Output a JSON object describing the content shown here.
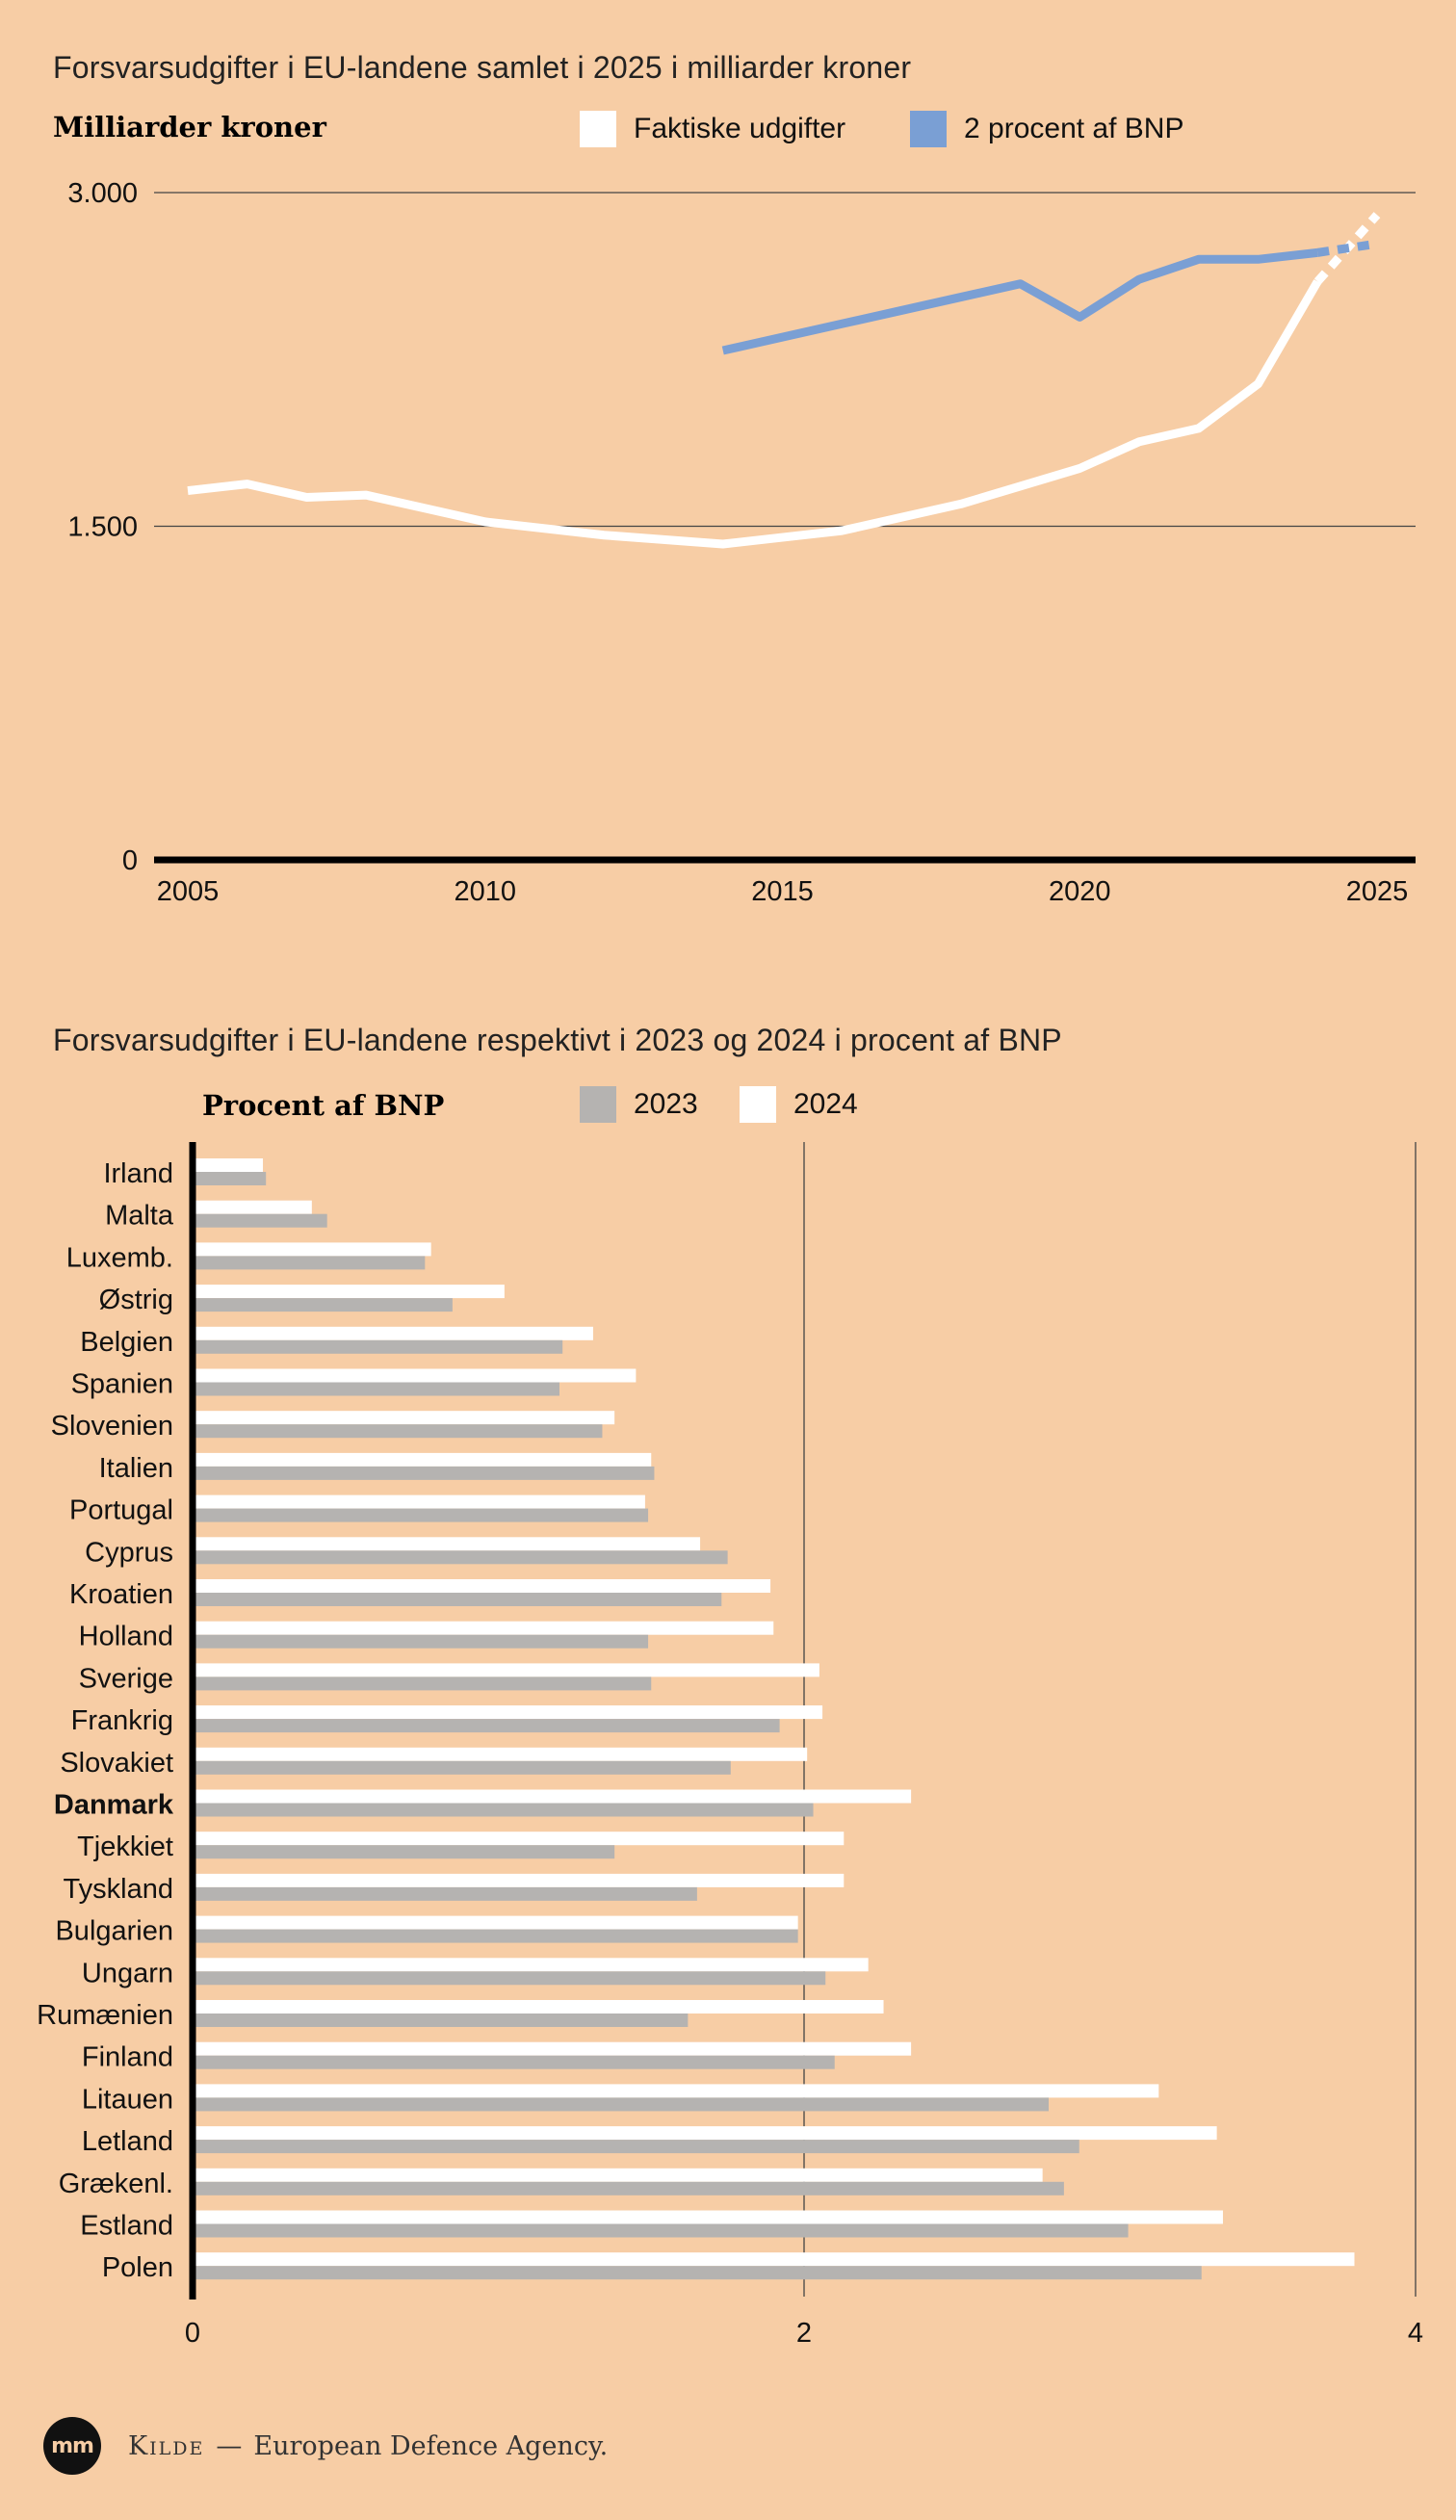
{
  "line_chart": {
    "title": "Forsvarsudgifter i EU-landene samlet i 2025 i milliarder kroner",
    "unit_label": "Milliarder kroner",
    "legend": {
      "actual": "Faktiske udgifter",
      "target": "2 procent af BNP"
    },
    "y_ticks": [
      "3.000",
      "1.500",
      "0"
    ],
    "x_ticks": [
      "2005",
      "2010",
      "2015",
      "2020",
      "2025"
    ]
  },
  "bar_chart": {
    "title": "Forsvarsudgifter i EU-landene respektivt i 2023 og 2024 i procent af BNP",
    "unit_label": "Procent af BNP",
    "legend": {
      "y2023": "2023",
      "y2024": "2024"
    },
    "x_ticks": [
      "0",
      "2",
      "4"
    ]
  },
  "source": {
    "logo": "mm",
    "label": "Kilde",
    "dash": "—",
    "text": "European Defence Agency."
  },
  "colors": {
    "background": "#f7cda5",
    "actual": "#ffffff",
    "target": "#7a9fd4",
    "bar2023": "#b5b3b1",
    "bar2024": "#ffffff",
    "axis": "#000000"
  },
  "chart_data": [
    {
      "type": "line",
      "title": "Forsvarsudgifter i EU-landene samlet i 2025 i milliarder kroner",
      "ylabel": "Milliarder kroner",
      "xlim": [
        2005,
        2025
      ],
      "ylim": [
        0,
        3000
      ],
      "grid": true,
      "legend_position": "top",
      "series": [
        {
          "name": "Faktiske udgifter",
          "x": [
            2005,
            2006,
            2007,
            2008,
            2009,
            2010,
            2011,
            2012,
            2013,
            2014,
            2015,
            2016,
            2017,
            2018,
            2019,
            2020,
            2021,
            2022,
            2023,
            2024
          ],
          "values": [
            1660,
            1690,
            1630,
            1640,
            1580,
            1520,
            1490,
            1460,
            1440,
            1420,
            1450,
            1480,
            1540,
            1600,
            1680,
            1760,
            1880,
            1940,
            2140,
            2600
          ],
          "projected": {
            "x": [
              2024,
              2025
            ],
            "values": [
              2600,
              2900
            ]
          }
        },
        {
          "name": "2 procent af BNP",
          "x": [
            2014,
            2015,
            2016,
            2017,
            2018,
            2019,
            2020,
            2021,
            2022,
            2023,
            2024
          ],
          "values": [
            2290,
            2350,
            2410,
            2470,
            2530,
            2590,
            2440,
            2610,
            2700,
            2700,
            2730
          ],
          "projected": {
            "x": [
              2024,
              2025
            ],
            "values": [
              2730,
              2770
            ]
          }
        }
      ]
    },
    {
      "type": "bar",
      "orientation": "horizontal",
      "title": "Forsvarsudgifter i EU-landene respektivt i 2023 og 2024 i procent af BNP",
      "xlabel": "Procent af BNP",
      "xlim": [
        0,
        4
      ],
      "legend_position": "top",
      "highlight": "Danmark",
      "categories": [
        "Irland",
        "Malta",
        "Luxemb.",
        "Østrig",
        "Belgien",
        "Spanien",
        "Slovenien",
        "Italien",
        "Portugal",
        "Cyprus",
        "Kroatien",
        "Holland",
        "Sverige",
        "Frankrig",
        "Slovakiet",
        "Danmark",
        "Tjekkiet",
        "Tyskland",
        "Bulgarien",
        "Ungarn",
        "Rumænien",
        "Finland",
        "Litauen",
        "Letland",
        "Grækenl.",
        "Estland",
        "Polen"
      ],
      "series": [
        {
          "name": "2023",
          "values": [
            0.24,
            0.44,
            0.76,
            0.85,
            1.21,
            1.2,
            1.34,
            1.51,
            1.49,
            1.75,
            1.73,
            1.49,
            1.5,
            1.92,
            1.76,
            2.03,
            1.38,
            1.65,
            1.98,
            2.07,
            1.62,
            2.1,
            2.8,
            2.9,
            2.85,
            3.06,
            3.3
          ]
        },
        {
          "name": "2024",
          "values": [
            0.23,
            0.39,
            0.78,
            1.02,
            1.31,
            1.45,
            1.38,
            1.5,
            1.48,
            1.66,
            1.89,
            1.9,
            2.05,
            2.06,
            2.01,
            2.35,
            2.13,
            2.13,
            1.98,
            2.21,
            2.26,
            2.35,
            3.16,
            3.35,
            2.78,
            3.37,
            3.8
          ]
        }
      ]
    }
  ]
}
